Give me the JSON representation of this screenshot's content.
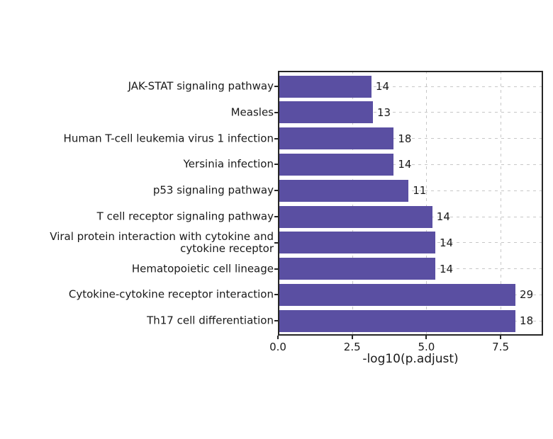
{
  "colors": {
    "bar": "#5a4fa2",
    "grid": "#c7c7c7",
    "axis": "#262626",
    "text": "#1a1a1a",
    "background": "#ffffff"
  },
  "chart_data": {
    "type": "bar",
    "orientation": "horizontal",
    "title": "",
    "xlabel": "-log10(p.adjust)",
    "ylabel": "",
    "xlim": [
      0,
      8.93
    ],
    "xticks": [
      0,
      2.5,
      5,
      7.5
    ],
    "xtick_labels": [
      "0.0",
      "2.5",
      "5.0",
      "7.5"
    ],
    "grid": "dashed, both axes, behind bars",
    "legend_position": "none",
    "categories": [
      "JAK-STAT signaling pathway",
      "Measles",
      "Human T-cell leukemia virus 1 infection",
      "Yersinia infection",
      "p53 signaling pathway",
      "T cell receptor signaling pathway",
      "Viral protein interaction with cytokine and\ncytokine receptor",
      "Hematopoietic cell lineage",
      "Cytokine-cytokine receptor interaction",
      "Th17 cell differentiation"
    ],
    "values": [
      3.15,
      3.2,
      3.9,
      3.9,
      4.4,
      5.2,
      5.3,
      5.3,
      8.0,
      8.0
    ],
    "count_labels": [
      "14",
      "13",
      "18",
      "14",
      "11",
      "14",
      "14",
      "14",
      "29",
      "18"
    ]
  }
}
